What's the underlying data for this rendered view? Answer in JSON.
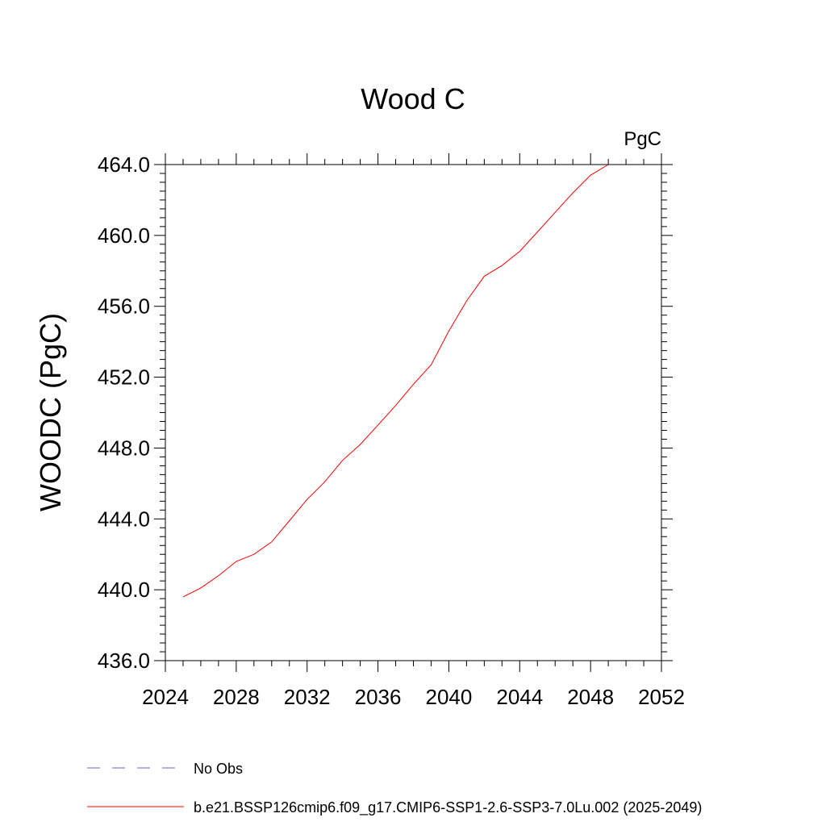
{
  "chart_data": {
    "type": "line",
    "title": "Wood C",
    "units_label": "PgC",
    "ylabel": "WOODC  (PgC)",
    "xlabel": "",
    "xlim": [
      2024,
      2052
    ],
    "ylim": [
      436,
      464
    ],
    "x_ticks": [
      2024,
      2028,
      2032,
      2036,
      2040,
      2044,
      2048,
      2052
    ],
    "x_tick_labels": [
      "2024",
      "2028",
      "2032",
      "2036",
      "2040",
      "2044",
      "2048",
      "2052"
    ],
    "y_ticks": [
      436,
      440,
      444,
      448,
      452,
      456,
      460,
      464
    ],
    "y_tick_labels": [
      "436.0",
      "440.0",
      "444.0",
      "448.0",
      "452.0",
      "456.0",
      "460.0",
      "464.0"
    ],
    "x_minor_step": 1,
    "y_minor_step": 0.5,
    "grid": false,
    "legend_position": "bottom",
    "series": [
      {
        "name": "b.e21.BSSP126cmip6.f09_g17.CMIP6-SSP1-2.6-SSP3-7.0Lu.002 (2025-2049)",
        "color": "#ff0000",
        "style": "solid",
        "x": [
          2025,
          2026,
          2027,
          2028,
          2029,
          2030,
          2031,
          2032,
          2033,
          2034,
          2035,
          2036,
          2037,
          2038,
          2039,
          2040,
          2041,
          2042,
          2043,
          2044,
          2045,
          2046,
          2047,
          2048,
          2049
        ],
        "y": [
          439.6,
          440.1,
          440.8,
          441.6,
          442.0,
          442.7,
          443.9,
          445.1,
          446.1,
          447.3,
          448.2,
          449.3,
          450.4,
          451.6,
          452.7,
          454.6,
          456.3,
          457.7,
          458.3,
          459.1,
          460.2,
          461.3,
          462.4,
          463.4,
          464.0
        ]
      }
    ],
    "legend": [
      {
        "label": "No Obs",
        "color": "#6666cc",
        "style": "dashed"
      },
      {
        "label": "b.e21.BSSP126cmip6.f09_g17.CMIP6-SSP1-2.6-SSP3-7.0Lu.002 (2025-2049)",
        "color": "#ff0000",
        "style": "solid"
      }
    ]
  }
}
